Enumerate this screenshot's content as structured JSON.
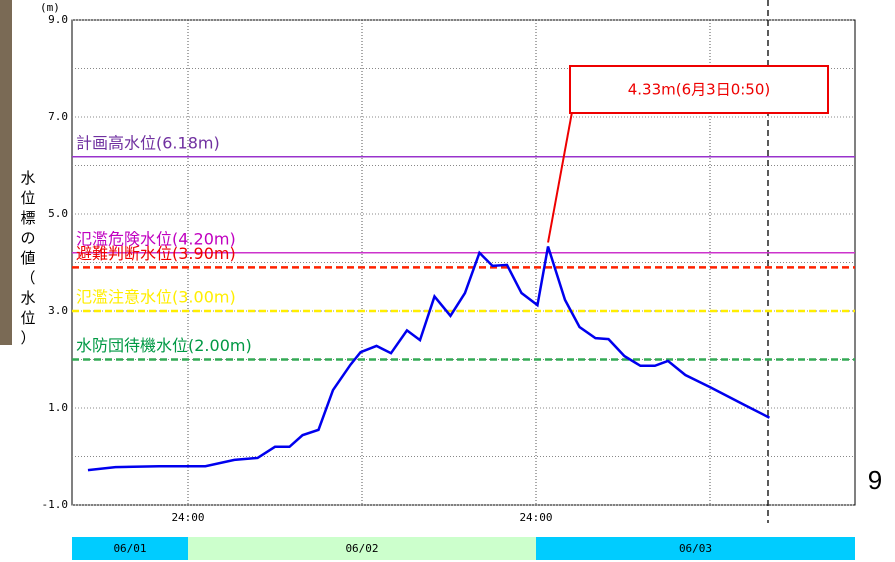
{
  "chart_data": {
    "type": "line",
    "unit": "(m)",
    "ylabel": "水位標の値（水位）",
    "xlim": [
      16,
      70
    ],
    "ylim": [
      -1,
      9
    ],
    "xticks": [
      {
        "value": 24,
        "label": "24:00"
      },
      {
        "value": 48,
        "label": "24:00"
      }
    ],
    "xgrid": [
      24,
      36,
      48,
      60
    ],
    "yticks": [
      {
        "value": 9,
        "label": "9.0"
      },
      {
        "value": 7,
        "label": "7.0"
      },
      {
        "value": 5,
        "label": "5.0"
      },
      {
        "value": 3,
        "label": "3.0"
      },
      {
        "value": 1,
        "label": "1.0"
      },
      {
        "value": -1,
        "label": "-1.0"
      }
    ],
    "ygrid": [
      -1,
      0,
      1,
      2,
      3,
      4,
      5,
      6,
      7,
      8,
      9
    ],
    "current_time": 64,
    "series": [
      {
        "color": "#0000ee",
        "x": [
          17.1,
          19,
          22,
          25.2,
          27.2,
          28.8,
          30,
          31,
          31.9,
          33,
          34,
          35.2,
          35.9,
          37,
          38,
          39.1,
          40,
          41,
          42.1,
          43.1,
          44.1,
          45,
          46,
          47,
          48.1,
          48.83,
          50,
          51,
          52.1,
          53,
          54.1,
          55.2,
          56.2,
          57.1,
          58.3,
          60,
          62.4,
          64.1
        ],
        "values": [
          -0.28,
          -0.22,
          -0.2,
          -0.2,
          -0.07,
          -0.03,
          0.2,
          0.2,
          0.44,
          0.55,
          1.37,
          1.89,
          2.15,
          2.28,
          2.13,
          2.6,
          2.4,
          3.3,
          2.9,
          3.37,
          4.2,
          3.93,
          3.95,
          3.37,
          3.12,
          4.33,
          3.23,
          2.67,
          2.44,
          2.42,
          2.07,
          1.87,
          1.87,
          1.97,
          1.68,
          1.43,
          1.06,
          0.8
        ]
      }
    ],
    "thresholds": [
      {
        "label": "計画高水位(6.18m)",
        "value": 6.18,
        "color": "#9933cc",
        "text_color": "#7030a0",
        "dashed": false
      },
      {
        "label": "氾濫危険水位(4.20m)",
        "value": 4.2,
        "color": "#cc33cc",
        "text_color": "#c000c0",
        "dashed": false
      },
      {
        "label": "避難判断水位(3.90m)",
        "value": 3.9,
        "color": "#ff2200",
        "text_color": "#ee0000",
        "dashed": true
      },
      {
        "label": "氾濫注意水位(3.00m)",
        "value": 3.0,
        "color": "#ffee00",
        "text_color": "#ffee00",
        "dashed": true
      },
      {
        "label": "水防団待機水位(2.00m)",
        "value": 2.0,
        "color": "#33aa55",
        "text_color": "#009944",
        "dashed": true
      }
    ],
    "annotation": "4.33m(6月3日0:50)",
    "date_bands": [
      {
        "label": "06/01",
        "from": 16,
        "to": 24,
        "color": "#00ccff"
      },
      {
        "label": "06/02",
        "from": 24,
        "to": 48,
        "color": "#ccffcc"
      },
      {
        "label": "06/03",
        "from": 48,
        "to": 70,
        "color": "#00ccff"
      }
    ],
    "page_number": "9"
  }
}
